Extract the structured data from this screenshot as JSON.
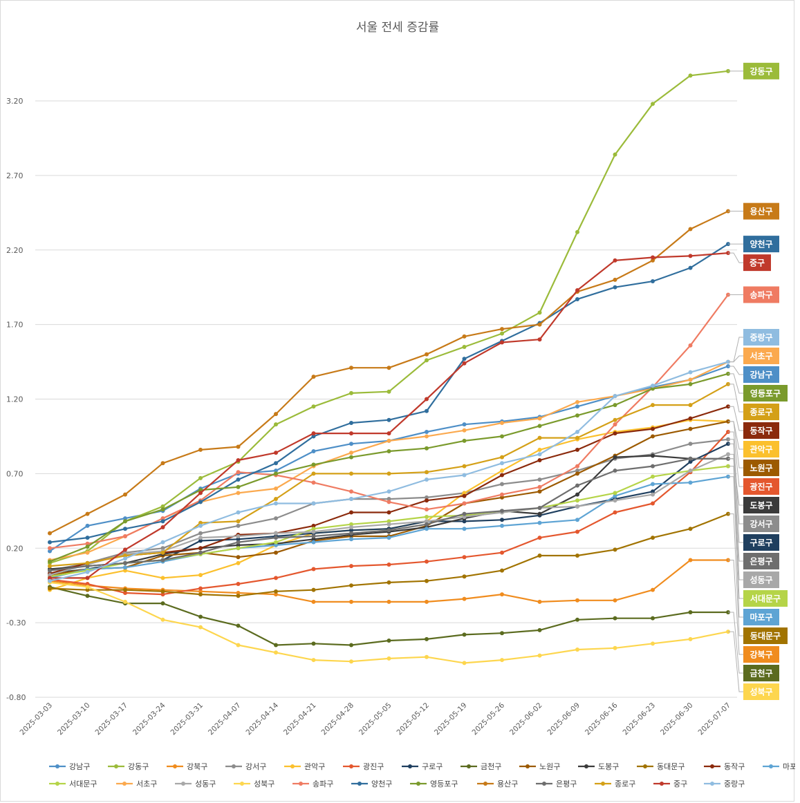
{
  "chart_data": {
    "type": "line",
    "title": "서울 전세 증감률",
    "xlabel": "",
    "ylabel": "",
    "ylim": [
      -0.8,
      3.65
    ],
    "yticks": [
      -0.8,
      -0.3,
      0.2,
      0.7,
      1.2,
      1.7,
      2.2,
      2.7,
      3.2
    ],
    "ytick_labels": [
      "-0.80",
      "-0.30",
      "0.20",
      "0.70",
      "1.20",
      "1.70",
      "2.20",
      "2.70",
      "3.20"
    ],
    "grid": true,
    "legend": "bottom",
    "x": [
      "2025-03-03",
      "2025-03-10",
      "2025-03-17",
      "2025-03-24",
      "2025-03-31",
      "2025-04-07",
      "2025-04-14",
      "2025-04-21",
      "2025-04-28",
      "2025-05-05",
      "2025-05-12",
      "2025-05-19",
      "2025-05-26",
      "2025-06-02",
      "2025-06-09",
      "2025-06-16",
      "2025-06-23",
      "2025-06-30",
      "2025-07-07"
    ],
    "series": [
      {
        "name": "강남구",
        "color": "#4e8fc7",
        "values": [
          0.18,
          0.35,
          0.4,
          0.45,
          0.6,
          0.7,
          0.72,
          0.85,
          0.9,
          0.92,
          0.98,
          1.03,
          1.05,
          1.08,
          1.15,
          1.22,
          1.28,
          1.33,
          1.42
        ]
      },
      {
        "name": "강동구",
        "color": "#9bbb3a",
        "values": [
          0.1,
          0.18,
          0.38,
          0.48,
          0.67,
          0.78,
          1.03,
          1.15,
          1.24,
          1.25,
          1.46,
          1.55,
          1.64,
          1.78,
          2.32,
          2.84,
          3.18,
          3.37,
          3.4
        ]
      },
      {
        "name": "강북구",
        "color": "#f08c1e",
        "values": [
          -0.02,
          -0.05,
          -0.07,
          -0.08,
          -0.09,
          -0.1,
          -0.11,
          -0.16,
          -0.16,
          -0.16,
          -0.16,
          -0.14,
          -0.11,
          -0.16,
          -0.15,
          -0.15,
          -0.08,
          0.12,
          0.12
        ]
      },
      {
        "name": "강서구",
        "color": "#8c8c8c",
        "values": [
          0.05,
          0.1,
          0.17,
          0.2,
          0.3,
          0.35,
          0.4,
          0.5,
          0.53,
          0.53,
          0.54,
          0.57,
          0.63,
          0.66,
          0.72,
          0.8,
          0.83,
          0.9,
          0.93
        ]
      },
      {
        "name": "관악구",
        "color": "#fbc02d",
        "values": [
          -0.08,
          0.0,
          0.05,
          0.0,
          0.02,
          0.1,
          0.22,
          0.3,
          0.32,
          0.33,
          0.38,
          0.57,
          0.72,
          0.86,
          0.93,
          0.98,
          1.01,
          1.06,
          1.05
        ]
      },
      {
        "name": "광진구",
        "color": "#e4572e",
        "values": [
          -0.01,
          -0.04,
          -0.1,
          -0.11,
          -0.07,
          -0.04,
          0.0,
          0.06,
          0.08,
          0.09,
          0.11,
          0.14,
          0.17,
          0.27,
          0.31,
          0.44,
          0.5,
          0.71,
          0.98
        ]
      },
      {
        "name": "구로구",
        "color": "#1f3f5f",
        "values": [
          0.03,
          0.06,
          0.1,
          0.12,
          0.25,
          0.26,
          0.28,
          0.3,
          0.32,
          0.33,
          0.38,
          0.38,
          0.39,
          0.42,
          0.48,
          0.53,
          0.58,
          0.78,
          0.9
        ]
      },
      {
        "name": "금천구",
        "color": "#5b6b1f",
        "values": [
          -0.06,
          -0.12,
          -0.17,
          -0.17,
          -0.26,
          -0.32,
          -0.45,
          -0.44,
          -0.45,
          -0.42,
          -0.41,
          -0.38,
          -0.37,
          -0.35,
          -0.28,
          -0.27,
          -0.27,
          -0.23,
          -0.23
        ]
      },
      {
        "name": "노원구",
        "color": "#9c5a00",
        "values": [
          0.02,
          0.06,
          0.07,
          0.15,
          0.17,
          0.14,
          0.17,
          0.25,
          0.28,
          0.28,
          0.35,
          0.5,
          0.54,
          0.58,
          0.7,
          0.82,
          0.95,
          1.0,
          1.05
        ]
      },
      {
        "name": "도봉구",
        "color": "#3b3b3b",
        "values": [
          0.06,
          0.08,
          0.1,
          0.16,
          0.2,
          0.22,
          0.23,
          0.26,
          0.29,
          0.31,
          0.34,
          0.4,
          0.45,
          0.43,
          0.56,
          0.81,
          0.82,
          0.8,
          0.8
        ]
      },
      {
        "name": "동대문구",
        "color": "#a17300",
        "values": [
          -0.07,
          -0.08,
          -0.08,
          -0.09,
          -0.11,
          -0.12,
          -0.09,
          -0.08,
          -0.05,
          -0.03,
          -0.02,
          0.01,
          0.05,
          0.15,
          0.15,
          0.19,
          0.27,
          0.33,
          0.43
        ]
      },
      {
        "name": "동작구",
        "color": "#8b2a0c",
        "values": [
          0.03,
          0.1,
          0.15,
          0.17,
          0.2,
          0.29,
          0.3,
          0.35,
          0.44,
          0.44,
          0.52,
          0.55,
          0.69,
          0.79,
          0.86,
          0.97,
          1.0,
          1.07,
          1.15
        ]
      },
      {
        "name": "마포구",
        "color": "#5ea4d4",
        "values": [
          0.0,
          0.06,
          0.07,
          0.11,
          0.16,
          0.2,
          0.22,
          0.24,
          0.26,
          0.27,
          0.33,
          0.33,
          0.35,
          0.37,
          0.39,
          0.55,
          0.63,
          0.64,
          0.68
        ]
      },
      {
        "name": "서대문구",
        "color": "#b5d448",
        "values": [
          0.01,
          0.05,
          0.1,
          0.12,
          0.16,
          0.2,
          0.24,
          0.33,
          0.36,
          0.38,
          0.41,
          0.42,
          0.44,
          0.47,
          0.52,
          0.57,
          0.68,
          0.72,
          0.75
        ]
      },
      {
        "name": "서초구",
        "color": "#fba94e",
        "values": [
          0.12,
          0.17,
          0.28,
          0.4,
          0.51,
          0.57,
          0.6,
          0.75,
          0.84,
          0.92,
          0.95,
          0.99,
          1.04,
          1.07,
          1.18,
          1.22,
          1.27,
          1.33,
          1.45
        ]
      },
      {
        "name": "성동구",
        "color": "#a8a8a8",
        "values": [
          0.02,
          0.09,
          0.16,
          0.18,
          0.27,
          0.28,
          0.3,
          0.31,
          0.34,
          0.36,
          0.38,
          0.41,
          0.44,
          0.47,
          0.48,
          0.52,
          0.56,
          0.72,
          0.83
        ]
      },
      {
        "name": "성북구",
        "color": "#fdd64e",
        "values": [
          -0.03,
          -0.06,
          -0.16,
          -0.28,
          -0.33,
          -0.45,
          -0.5,
          -0.55,
          -0.56,
          -0.54,
          -0.53,
          -0.57,
          -0.55,
          -0.52,
          -0.48,
          -0.47,
          -0.44,
          -0.41,
          -0.36
        ]
      },
      {
        "name": "송파구",
        "color": "#ef7b62",
        "values": [
          0.2,
          0.23,
          0.28,
          0.4,
          0.52,
          0.71,
          0.69,
          0.64,
          0.58,
          0.51,
          0.46,
          0.5,
          0.56,
          0.61,
          0.75,
          1.03,
          1.28,
          1.56,
          1.9
        ]
      },
      {
        "name": "양천구",
        "color": "#306e9d",
        "values": [
          0.24,
          0.27,
          0.33,
          0.38,
          0.51,
          0.66,
          0.77,
          0.95,
          1.04,
          1.06,
          1.12,
          1.47,
          1.59,
          1.71,
          1.87,
          1.95,
          1.99,
          2.08,
          2.24
        ]
      },
      {
        "name": "영등포구",
        "color": "#7a9a2c",
        "values": [
          0.11,
          0.21,
          0.38,
          0.46,
          0.59,
          0.61,
          0.7,
          0.76,
          0.81,
          0.85,
          0.87,
          0.92,
          0.95,
          1.02,
          1.09,
          1.16,
          1.27,
          1.3,
          1.37
        ]
      },
      {
        "name": "용산구",
        "color": "#c77a18",
        "values": [
          0.3,
          0.43,
          0.56,
          0.77,
          0.86,
          0.88,
          1.1,
          1.35,
          1.41,
          1.41,
          1.5,
          1.62,
          1.67,
          1.7,
          1.92,
          2.0,
          2.13,
          2.34,
          2.46
        ]
      },
      {
        "name": "은평구",
        "color": "#6e6e6e",
        "values": [
          0.05,
          0.08,
          0.1,
          0.12,
          0.17,
          0.24,
          0.27,
          0.28,
          0.3,
          0.32,
          0.36,
          0.43,
          0.45,
          0.47,
          0.62,
          0.72,
          0.75,
          0.8,
          0.8
        ]
      },
      {
        "name": "종로구",
        "color": "#d4a017",
        "values": [
          0.08,
          0.1,
          0.15,
          0.17,
          0.37,
          0.38,
          0.53,
          0.7,
          0.7,
          0.7,
          0.71,
          0.75,
          0.81,
          0.94,
          0.94,
          1.06,
          1.16,
          1.16,
          1.3
        ]
      },
      {
        "name": "중구",
        "color": "#c0392b",
        "values": [
          0.0,
          0.0,
          0.19,
          0.34,
          0.57,
          0.79,
          0.84,
          0.97,
          0.97,
          0.97,
          1.2,
          1.44,
          1.58,
          1.6,
          1.93,
          2.13,
          2.15,
          2.16,
          2.18
        ]
      },
      {
        "name": "중랑구",
        "color": "#8fbce0",
        "values": [
          -0.02,
          0.04,
          0.13,
          0.24,
          0.35,
          0.44,
          0.5,
          0.5,
          0.53,
          0.58,
          0.66,
          0.69,
          0.77,
          0.83,
          0.98,
          1.22,
          1.29,
          1.38,
          1.45
        ]
      }
    ],
    "end_labels": [
      {
        "name": "강동구",
        "color": "#9bbb3a"
      },
      {
        "name": "용산구",
        "color": "#c77a18"
      },
      {
        "name": "양천구",
        "color": "#306e9d"
      },
      {
        "name": "중구",
        "color": "#c0392b"
      },
      {
        "name": "송파구",
        "color": "#ef7b62"
      },
      {
        "name": "중랑구",
        "color": "#8fbce0"
      },
      {
        "name": "서초구",
        "color": "#fba94e"
      },
      {
        "name": "강남구",
        "color": "#4e8fc7"
      },
      {
        "name": "영등포구",
        "color": "#7a9a2c"
      },
      {
        "name": "종로구",
        "color": "#d4a017"
      },
      {
        "name": "동작구",
        "color": "#8b2a0c"
      },
      {
        "name": "관악구",
        "color": "#fbc02d"
      },
      {
        "name": "노원구",
        "color": "#9c5a00"
      },
      {
        "name": "광진구",
        "color": "#e4572e"
      },
      {
        "name": "도봉구",
        "color": "#3b3b3b"
      },
      {
        "name": "강서구",
        "color": "#8c8c8c"
      },
      {
        "name": "구로구",
        "color": "#1f3f5f"
      },
      {
        "name": "은평구",
        "color": "#6e6e6e"
      },
      {
        "name": "성동구",
        "color": "#a8a8a8"
      },
      {
        "name": "서대문구",
        "color": "#b5d448"
      },
      {
        "name": "마포구",
        "color": "#5ea4d4"
      },
      {
        "name": "동대문구",
        "color": "#a17300"
      },
      {
        "name": "강북구",
        "color": "#f08c1e"
      },
      {
        "name": "금천구",
        "color": "#5b6b1f"
      },
      {
        "name": "성북구",
        "color": "#fdd64e"
      }
    ]
  }
}
